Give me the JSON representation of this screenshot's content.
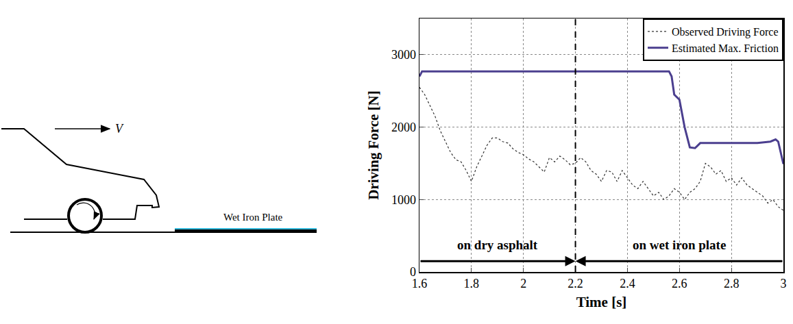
{
  "diagram": {
    "velocity_label": "V",
    "plate_label": "Wet Iron Plate"
  },
  "chart_data": {
    "type": "line",
    "x_label": "Time [s]",
    "y_label": "Driving Force [N]",
    "xlim": [
      1.6,
      3
    ],
    "xticks": [
      1.6,
      1.8,
      2,
      2.2,
      2.4,
      2.6,
      2.8,
      3
    ],
    "ylim": [
      0,
      3500
    ],
    "yticks": [
      0,
      1000,
      2000,
      3000
    ],
    "grid": true,
    "legend": "upper right",
    "boundary": 2.2,
    "annotations": [
      {
        "text": "on dry asphalt",
        "x": [
          1.6,
          2.2
        ],
        "y": 150
      },
      {
        "text": "on wet iron plate",
        "x": [
          3,
          2.2
        ],
        "y": 150
      }
    ],
    "series": [
      {
        "name": "Observed Driving Force",
        "color": "#333333",
        "line_style": "dotted",
        "x": [
          1.6,
          1.62,
          1.64,
          1.66,
          1.68,
          1.7,
          1.72,
          1.74,
          1.76,
          1.78,
          1.8,
          1.82,
          1.84,
          1.86,
          1.88,
          1.9,
          1.92,
          1.94,
          1.96,
          1.98,
          2.0,
          2.02,
          2.04,
          2.06,
          2.08,
          2.1,
          2.12,
          2.14,
          2.16,
          2.18,
          2.2,
          2.22,
          2.24,
          2.26,
          2.28,
          2.3,
          2.32,
          2.34,
          2.36,
          2.38,
          2.4,
          2.42,
          2.44,
          2.46,
          2.48,
          2.5,
          2.52,
          2.54,
          2.56,
          2.58,
          2.6,
          2.62,
          2.64,
          2.66,
          2.68,
          2.7,
          2.72,
          2.74,
          2.76,
          2.78,
          2.8,
          2.82,
          2.84,
          2.86,
          2.88,
          2.9,
          2.92,
          2.94,
          2.96,
          2.98,
          3.0
        ],
        "values": [
          2550,
          2450,
          2300,
          2150,
          1950,
          1800,
          1650,
          1550,
          1520,
          1400,
          1250,
          1450,
          1600,
          1750,
          1850,
          1850,
          1800,
          1780,
          1700,
          1650,
          1620,
          1560,
          1520,
          1450,
          1380,
          1580,
          1520,
          1600,
          1550,
          1480,
          1500,
          1580,
          1520,
          1400,
          1350,
          1250,
          1400,
          1380,
          1250,
          1400,
          1300,
          1200,
          1150,
          1250,
          1150,
          1050,
          1100,
          1000,
          1050,
          1150,
          1100,
          1000,
          1100,
          1150,
          1250,
          1500,
          1450,
          1350,
          1400,
          1250,
          1300,
          1200,
          1300,
          1200,
          1150,
          1100,
          1050,
          950,
          1000,
          900,
          850
        ]
      },
      {
        "name": "Estimated Max. Friction",
        "color": "#4b3f8f",
        "line_style": "solid",
        "x": [
          1.6,
          1.61,
          2.56,
          2.57,
          2.58,
          2.6,
          2.62,
          2.64,
          2.66,
          2.68,
          2.9,
          2.95,
          2.97,
          2.98,
          3.0
        ],
        "values": [
          2700,
          2770,
          2770,
          2700,
          2450,
          2380,
          2000,
          1720,
          1710,
          1780,
          1780,
          1800,
          1830,
          1800,
          1490
        ]
      }
    ]
  }
}
